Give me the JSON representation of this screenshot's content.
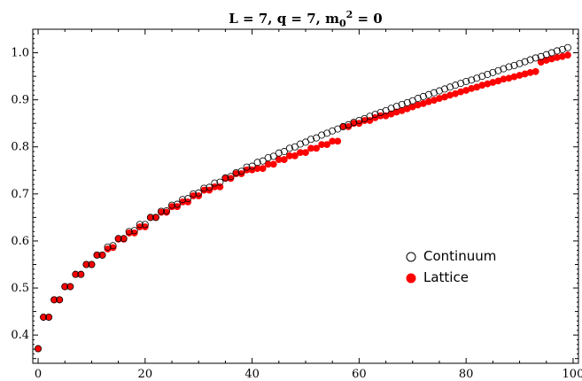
{
  "chart_data": {
    "type": "scatter",
    "title": "L = 7,  q = 7,  m",
    "title_sub": "0",
    "title_sup": "2",
    "title_tail": " = 0",
    "xlabel": "",
    "ylabel": "",
    "xlim": [
      -1,
      101
    ],
    "ylim": [
      0.34,
      1.05
    ],
    "x_ticks": [
      0,
      20,
      40,
      60,
      80,
      100
    ],
    "y_ticks": [
      0.4,
      0.5,
      0.6,
      0.7,
      0.8,
      0.9,
      1.0
    ],
    "x_tick_labels": [
      "0",
      "20",
      "40",
      "60",
      "80",
      "100"
    ],
    "y_tick_labels": [
      "0.4",
      "0.5",
      "0.6",
      "0.7",
      "0.8",
      "0.9",
      "1.0"
    ],
    "grid": false,
    "legend_position": "right-center",
    "series": [
      {
        "name": "Continuum",
        "marker": "open-circle",
        "color": "#000000",
        "x": [
          0,
          1,
          2,
          3,
          4,
          5,
          6,
          7,
          8,
          9,
          10,
          11,
          12,
          13,
          14,
          15,
          16,
          17,
          18,
          19,
          20,
          21,
          22,
          23,
          24,
          25,
          26,
          27,
          28,
          29,
          30,
          31,
          32,
          33,
          34,
          35,
          36,
          37,
          38,
          39,
          40,
          41,
          42,
          43,
          44,
          45,
          46,
          47,
          48,
          49,
          50,
          51,
          52,
          53,
          54,
          55,
          56,
          57,
          58,
          59,
          60,
          61,
          62,
          63,
          64,
          65,
          66,
          67,
          68,
          69,
          70,
          71,
          72,
          73,
          74,
          75,
          76,
          77,
          78,
          79,
          80,
          81,
          82,
          83,
          84,
          85,
          86,
          87,
          88,
          89,
          90,
          91,
          92,
          93,
          94,
          95,
          96,
          97,
          98,
          99
        ],
        "y": [
          0.371,
          0.438,
          0.438,
          0.475,
          0.475,
          0.503,
          0.503,
          0.529,
          0.529,
          0.55,
          0.55,
          0.57,
          0.57,
          0.587,
          0.59,
          0.605,
          0.605,
          0.62,
          0.622,
          0.635,
          0.635,
          0.65,
          0.65,
          0.663,
          0.664,
          0.676,
          0.678,
          0.688,
          0.69,
          0.7,
          0.702,
          0.712,
          0.714,
          0.723,
          0.725,
          0.734,
          0.737,
          0.745,
          0.748,
          0.757,
          0.759,
          0.767,
          0.77,
          0.777,
          0.78,
          0.787,
          0.79,
          0.797,
          0.8,
          0.806,
          0.81,
          0.816,
          0.819,
          0.825,
          0.829,
          0.834,
          0.838,
          0.843,
          0.847,
          0.852,
          0.856,
          0.86,
          0.865,
          0.869,
          0.873,
          0.877,
          0.882,
          0.886,
          0.89,
          0.894,
          0.898,
          0.903,
          0.907,
          0.911,
          0.915,
          0.919,
          0.923,
          0.927,
          0.931,
          0.935,
          0.939,
          0.942,
          0.946,
          0.95,
          0.954,
          0.958,
          0.962,
          0.966,
          0.97,
          0.973,
          0.977,
          0.981,
          0.985,
          0.989,
          0.992,
          0.996,
          1.0,
          1.004,
          1.007,
          1.011
        ]
      },
      {
        "name": "Lattice",
        "marker": "filled-circle",
        "color": "#ff0000",
        "x": [
          0,
          1,
          2,
          3,
          4,
          5,
          6,
          7,
          8,
          9,
          10,
          11,
          12,
          13,
          14,
          15,
          16,
          17,
          18,
          19,
          20,
          21,
          22,
          23,
          24,
          25,
          26,
          27,
          28,
          29,
          30,
          31,
          32,
          33,
          34,
          35,
          36,
          37,
          38,
          39,
          40,
          41,
          42,
          43,
          44,
          45,
          46,
          47,
          48,
          49,
          50,
          51,
          52,
          53,
          54,
          55,
          56,
          57,
          58,
          59,
          60,
          61,
          62,
          63,
          64,
          65,
          66,
          67,
          68,
          69,
          70,
          71,
          72,
          73,
          74,
          75,
          76,
          77,
          78,
          79,
          80,
          81,
          82,
          83,
          84,
          85,
          86,
          87,
          88,
          89,
          90,
          91,
          92,
          93,
          94,
          95,
          96,
          97,
          98,
          99
        ],
        "y": [
          0.371,
          0.438,
          0.438,
          0.475,
          0.475,
          0.503,
          0.503,
          0.529,
          0.529,
          0.55,
          0.55,
          0.57,
          0.57,
          0.583,
          0.586,
          0.604,
          0.604,
          0.617,
          0.617,
          0.63,
          0.63,
          0.65,
          0.65,
          0.661,
          0.661,
          0.673,
          0.673,
          0.683,
          0.683,
          0.696,
          0.696,
          0.708,
          0.708,
          0.715,
          0.715,
          0.733,
          0.733,
          0.743,
          0.743,
          0.751,
          0.751,
          0.754,
          0.754,
          0.763,
          0.763,
          0.773,
          0.773,
          0.781,
          0.781,
          0.788,
          0.788,
          0.797,
          0.797,
          0.805,
          0.805,
          0.812,
          0.812,
          0.843,
          0.843,
          0.85,
          0.85,
          0.856,
          0.856,
          0.862,
          0.866,
          0.866,
          0.87,
          0.874,
          0.877,
          0.881,
          0.885,
          0.889,
          0.892,
          0.896,
          0.899,
          0.903,
          0.906,
          0.91,
          0.913,
          0.917,
          0.92,
          0.924,
          0.927,
          0.931,
          0.934,
          0.937,
          0.94,
          0.944,
          0.946,
          0.949,
          0.952,
          0.955,
          0.958,
          0.96,
          0.98,
          0.984,
          0.987,
          0.99,
          0.992,
          0.995
        ]
      }
    ]
  }
}
